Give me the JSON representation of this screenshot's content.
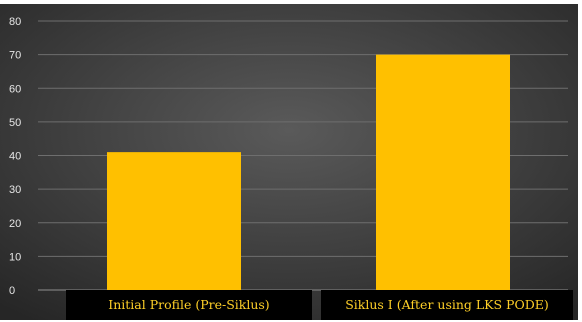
{
  "chart_data": {
    "type": "bar",
    "categories": [
      "Initial Profile (Pre-Siklus)",
      "Siklus I (After using LKS PODE)"
    ],
    "values": [
      41,
      70
    ],
    "title": "",
    "xlabel": "",
    "ylabel": "",
    "ylim": [
      0,
      80
    ],
    "yticks": [
      "0",
      "10",
      "20",
      "30",
      "40",
      "50",
      "60",
      "70",
      "80"
    ],
    "grid": true,
    "legend": "none"
  },
  "colors": {
    "bar": "#ffc000",
    "background_center": "#5a5a5a",
    "background_edge": "#262626",
    "gridline": "#6e6e6e",
    "category_label_bg": "#000000",
    "category_label_text": "#ffd028",
    "tick_text": "#e6e6e6"
  }
}
